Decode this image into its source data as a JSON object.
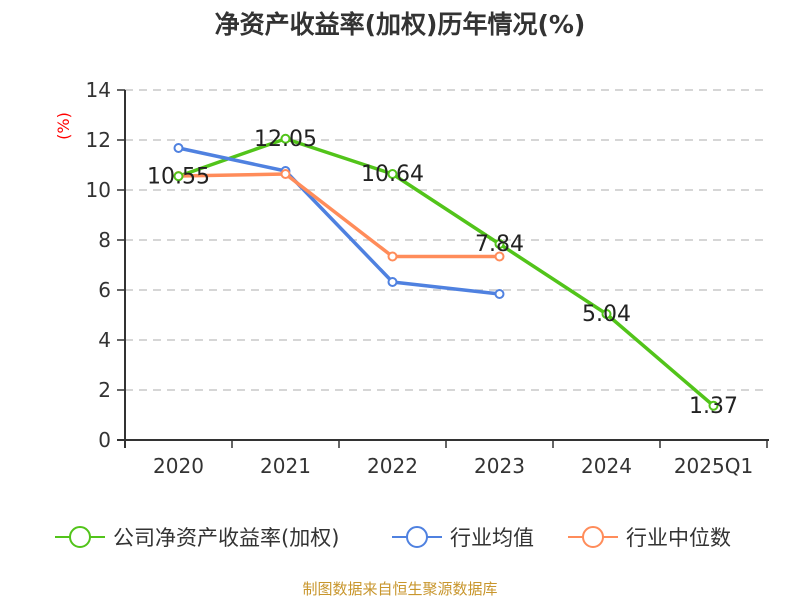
{
  "chart_data": {
    "type": "line",
    "title": "净资产收益率(加权)历年情况(%)",
    "ylabel": "(%)",
    "xlabel": "",
    "categories": [
      "2020",
      "2021",
      "2022",
      "2023",
      "2024",
      "2025Q1"
    ],
    "ylim": [
      0,
      14
    ],
    "yticks": [
      0,
      2,
      4,
      6,
      8,
      10,
      12,
      14
    ],
    "grid": true,
    "legend_position": "bottom",
    "series": [
      {
        "name": "公司净资产收益率(加权)",
        "color": "#52c41a",
        "values": [
          10.55,
          12.05,
          10.64,
          7.84,
          5.04,
          1.37
        ],
        "labels": [
          "10.55",
          "12.05",
          "10.64",
          "7.84",
          "5.04",
          "1.37"
        ]
      },
      {
        "name": "行业均值",
        "color": "#4f81e0",
        "values": [
          11.68,
          10.76,
          6.32,
          5.84,
          null,
          null
        ]
      },
      {
        "name": "行业中位数",
        "color": "#ff8c5a",
        "values": [
          10.56,
          10.64,
          7.34,
          7.34,
          null,
          null
        ]
      }
    ],
    "source": "制图数据来自恒生聚源数据库"
  }
}
